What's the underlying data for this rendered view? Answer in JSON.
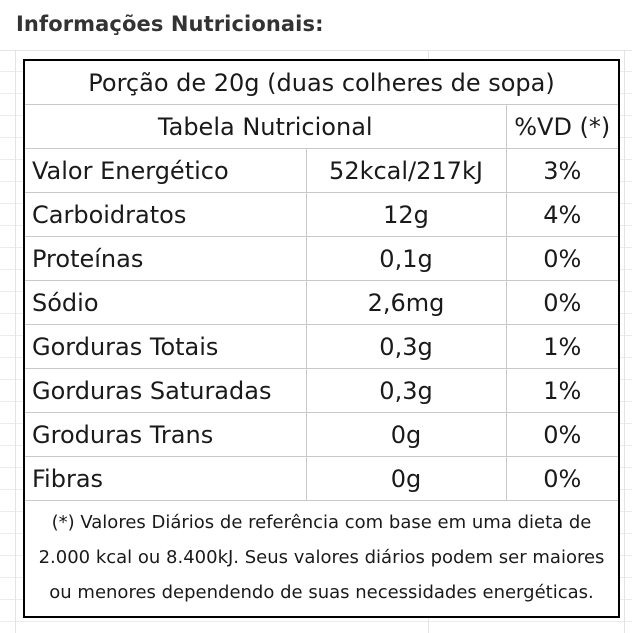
{
  "heading": "Informações Nutricionais:",
  "table": {
    "portion": "Porção de 20g (duas colheres de sopa)",
    "header": {
      "title": "Tabela Nutricional",
      "vd": "%VD (*)"
    },
    "rows": [
      {
        "name": "Valor Energético",
        "amount": "52kcal/217kJ",
        "vd": "3%"
      },
      {
        "name": "Carboidratos",
        "amount": "12g",
        "vd": "4%"
      },
      {
        "name": "Proteínas",
        "amount": "0,1g",
        "vd": "0%"
      },
      {
        "name": "Sódio",
        "amount": "2,6mg",
        "vd": "0%"
      },
      {
        "name": "Gorduras Totais",
        "amount": "0,3g",
        "vd": "1%"
      },
      {
        "name": "Gorduras Saturadas",
        "amount": "0,3g",
        "vd": "1%"
      },
      {
        "name": "Groduras Trans",
        "amount": "0g",
        "vd": "0%"
      },
      {
        "name": "Fibras",
        "amount": "0g",
        "vd": "0%"
      }
    ],
    "footnote": "(*) Valores Diários de referência com base em uma dieta de 2.000 kcal ou 8.400kJ. Seus valores diários podem ser maiores ou menores dependendo de suas necessidades energéticas."
  }
}
